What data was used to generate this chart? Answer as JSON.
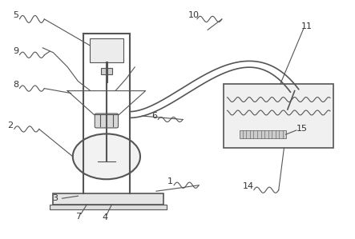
{
  "bg_color": "#ffffff",
  "line_color": "#555555",
  "label_color": "#333333",
  "fig_width": 4.43,
  "fig_height": 2.99,
  "dpi": 100
}
